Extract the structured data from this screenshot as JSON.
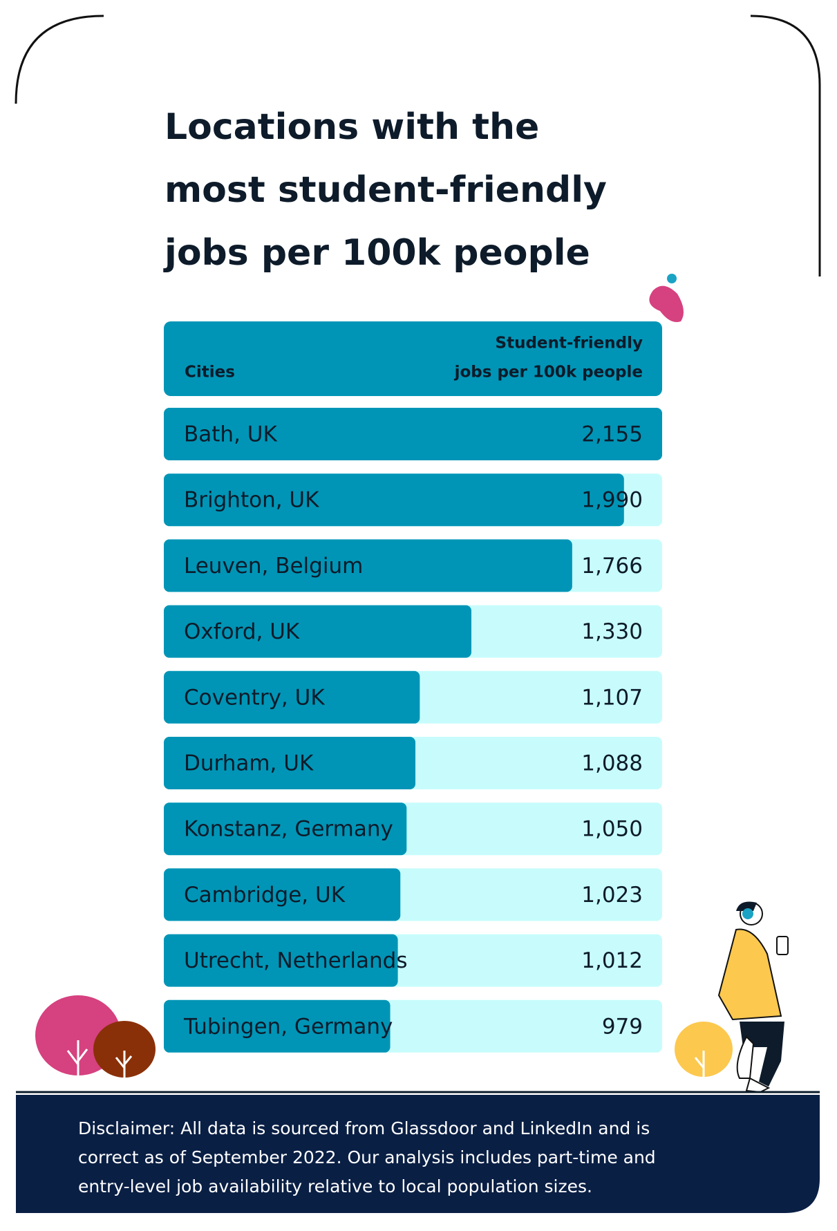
{
  "chart_data": {
    "type": "bar",
    "orientation": "horizontal",
    "title": [
      "Locations with the",
      "most student-friendly",
      "jobs per 100k people"
    ],
    "label_header": "Cities",
    "value_header": [
      "Student-friendly",
      "jobs per 100k people"
    ],
    "categories": [
      "Bath, UK",
      "Brighton, UK",
      "Leuven, Belgium",
      "Oxford, UK",
      "Coventry, UK",
      "Durham, UK",
      "Konstanz, Germany",
      "Cambridge, UK",
      "Utrecht, Netherlands",
      "Tubingen, Germany"
    ],
    "values": [
      2155,
      1990,
      1766,
      1330,
      1107,
      1088,
      1050,
      1023,
      1012,
      979
    ],
    "value_labels": [
      "2,155",
      "1,990",
      "1,766",
      "1,330",
      "1,107",
      "1,088",
      "1,050",
      "1,023",
      "1,012",
      "979"
    ],
    "color": "#0095b6",
    "track_color": "#c8fcfc",
    "disclaimer": [
      "Disclaimer: All data is sourced from Glassdoor and LinkedIn and is",
      "correct as of September 2022. Our analysis includes part-time and",
      "entry-level job availability relative to local population sizes."
    ]
  }
}
